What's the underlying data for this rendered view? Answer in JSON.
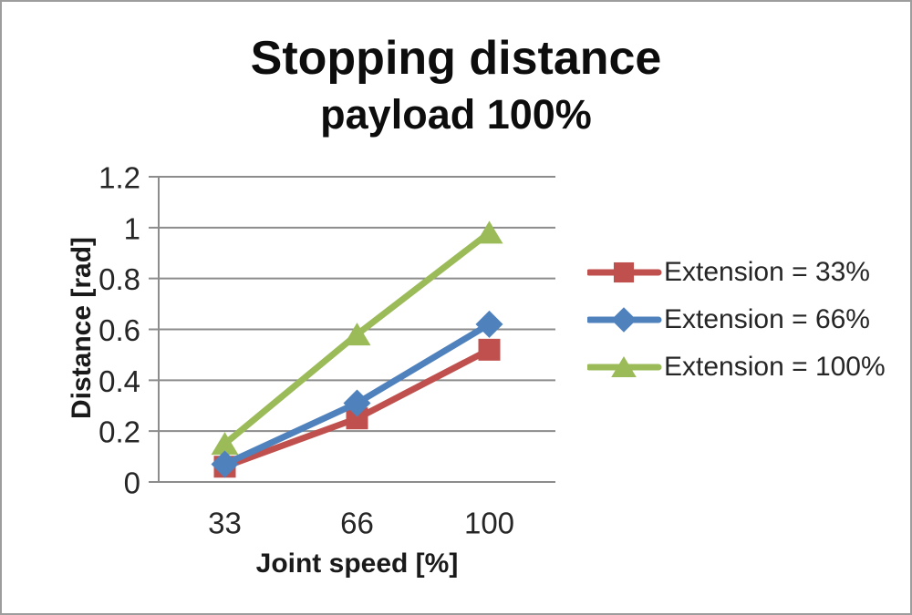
{
  "window": {
    "background": "#ffffff",
    "border_color": "#9d9d9d"
  },
  "chart_data": {
    "type": "line",
    "title": "Stopping distance",
    "subtitle": "payload 100%",
    "categories": [
      "33",
      "66",
      "100"
    ],
    "series": [
      {
        "name": "Extension = 33%",
        "marker": "square",
        "color": "#C0504D",
        "values": [
          0.06,
          0.25,
          0.52
        ]
      },
      {
        "name": "Extension = 66%",
        "marker": "diamond",
        "color": "#4F81BD",
        "values": [
          0.07,
          0.31,
          0.62
        ]
      },
      {
        "name": "Extension = 100%",
        "marker": "triangle",
        "color": "#9BBB59",
        "values": [
          0.15,
          0.58,
          0.98
        ]
      }
    ],
    "xlabel": "Joint speed [%]",
    "ylabel": "Distance [rad]",
    "ylim": [
      0,
      1.2
    ],
    "yticks": [
      "0",
      "0.2",
      "0.4",
      "0.6",
      "0.8",
      "1",
      "1.2"
    ],
    "grid": true,
    "legend_position": "right",
    "colors": {
      "gridline": "#8C8C8C",
      "axis": "#8C8C8C",
      "tick_text": "#262626",
      "title_text": "#0d0d0d"
    }
  }
}
